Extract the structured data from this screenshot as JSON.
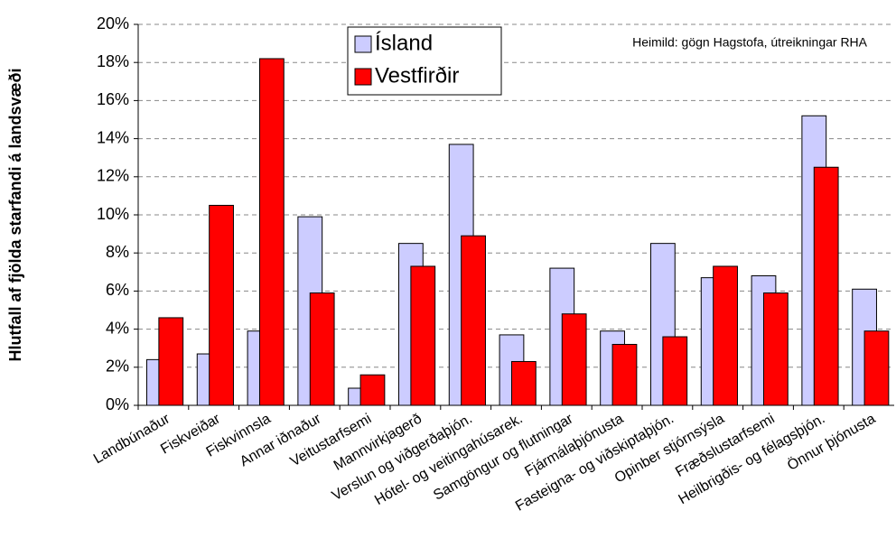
{
  "chart_data": {
    "type": "bar",
    "ylabel": "Hlutfall af fjölda starfandi á landsvæði",
    "annotation": "Heimild: gögn Hagstofa, útreikningar RHA",
    "categories": [
      "Landbúnaður",
      "Fiskveiðar",
      "Fiskvinnsla",
      "Annar iðnaður",
      "Veitustarfsemi",
      "Mannvirkjagerð",
      "Verslun og viðgerðaþjón.",
      "Hótel- og veitingahúsarek.",
      "Samgöngur og flutningar",
      "Fjármálaþjónusta",
      "Fasteigna- og viðskiptaþjón.",
      "Opinber stjórnsýsla",
      "Fræðslustarfsemi",
      "Heilbrigðis- og félagsþjón.",
      "Önnur þjónusta"
    ],
    "series": [
      {
        "name": "Ísland",
        "color": "#ccccff",
        "values": [
          2.4,
          2.7,
          3.9,
          9.9,
          0.9,
          8.5,
          13.7,
          3.7,
          7.2,
          3.9,
          8.5,
          6.7,
          6.8,
          15.2,
          6.1
        ]
      },
      {
        "name": "Vestfirðir",
        "color": "#ff0000",
        "values": [
          4.6,
          10.5,
          18.2,
          5.9,
          1.6,
          7.3,
          8.9,
          2.3,
          4.8,
          3.2,
          3.6,
          7.3,
          5.9,
          12.5,
          3.9
        ]
      }
    ],
    "ylim": [
      0,
      20
    ],
    "yticks": [
      {
        "value": 0,
        "label": "0%"
      },
      {
        "value": 2,
        "label": "2%"
      },
      {
        "value": 4,
        "label": "4%"
      },
      {
        "value": 6,
        "label": "6%"
      },
      {
        "value": 8,
        "label": "8%"
      },
      {
        "value": 10,
        "label": "10%"
      },
      {
        "value": 12,
        "label": "12%"
      },
      {
        "value": 14,
        "label": "14%"
      },
      {
        "value": 16,
        "label": "16%"
      },
      {
        "value": 18,
        "label": "18%"
      },
      {
        "value": 20,
        "label": "20%"
      }
    ],
    "grid": true,
    "legend_position": "top"
  }
}
